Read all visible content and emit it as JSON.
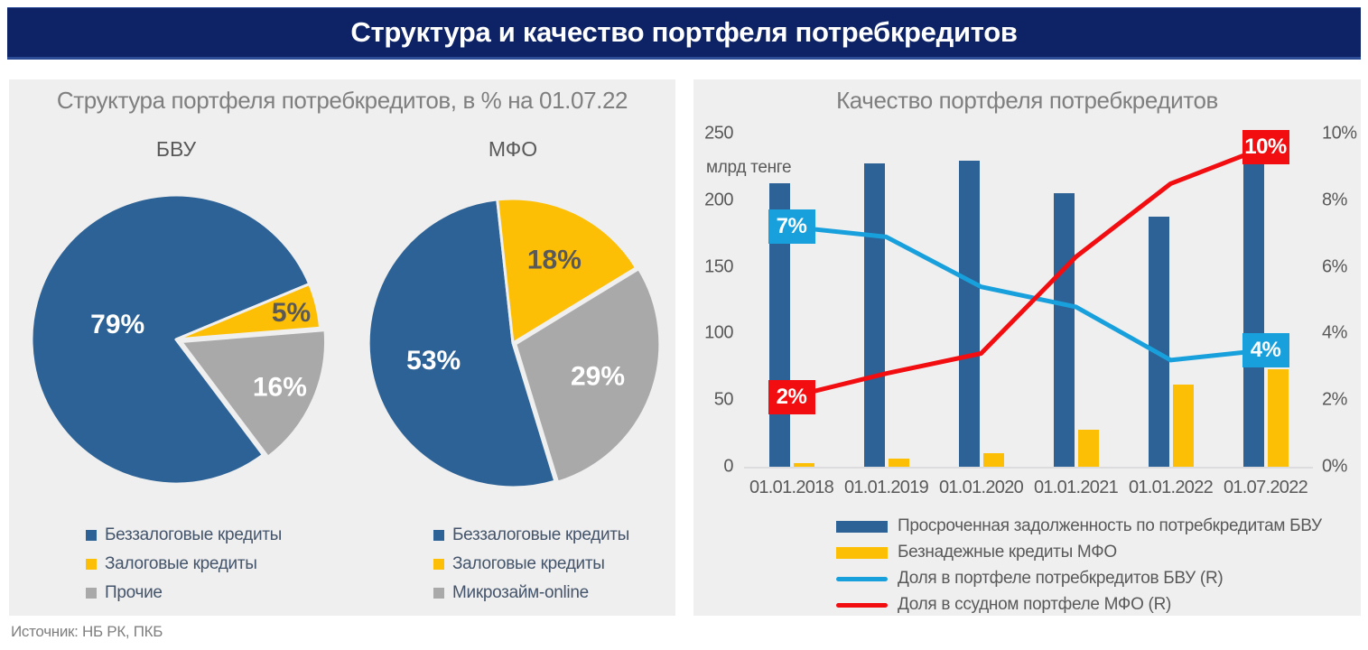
{
  "page": {
    "title": "Структура и качество портфеля потребкредитов",
    "source": "Источник: НБ РК, ПКБ"
  },
  "colors": {
    "header_bg": "#0e2365",
    "panel_bg": "#efeff0",
    "bar_blue": "#2c6295",
    "amber": "#fdbf05",
    "gray_slice": "#a9a9aa",
    "line_cyan": "#18a0dc",
    "line_red": "#f20d11",
    "title_gray": "#7f7f7f",
    "axis_text": "#595959",
    "legend_text": "#44546a"
  },
  "structure_panel": {
    "title": "Структура портфеля потребкредитов, в % на 01.07.22"
  },
  "chart_data": [
    {
      "type": "pie",
      "title": "БВУ",
      "rotation_deg": 143,
      "slices": [
        {
          "label": "Беззалоговые кредиты",
          "value": 79,
          "pct_label": "79%",
          "color": "#2c6295"
        },
        {
          "label": "Залоговые кредиты",
          "value": 5,
          "pct_label": "5%",
          "color": "#fdbf05"
        },
        {
          "label": "Прочие",
          "value": 16,
          "pct_label": "16%",
          "color": "#a9a9aa"
        }
      ]
    },
    {
      "type": "pie",
      "title": "МФО",
      "rotation_deg": 163,
      "slices": [
        {
          "label": "Беззалоговые кредиты",
          "value": 53,
          "pct_label": "53%",
          "color": "#2c6295"
        },
        {
          "label": "Залоговые кредиты",
          "value": 18,
          "pct_label": "18%",
          "color": "#fdbf05"
        },
        {
          "label": "Микрозайм-online",
          "value": 29,
          "pct_label": "29%",
          "color": "#a9a9aa"
        }
      ]
    },
    {
      "type": "bar+line",
      "title": "Качество портфеля потребкредитов",
      "categories": [
        "01.01.2018",
        "01.01.2019",
        "01.01.2020",
        "01.01.2021",
        "01.01.2022",
        "01.07.2022"
      ],
      "y_left": {
        "label": "млрд тенге",
        "ticks": [
          "250",
          "200",
          "150",
          "100",
          "50",
          "0"
        ],
        "max": 250,
        "min": 0
      },
      "y_right": {
        "ticks": [
          "10%",
          "8%",
          "6%",
          "4%",
          "2%",
          "0%"
        ],
        "max": 10,
        "min": 0
      },
      "grid": false,
      "legend_position": "bottom",
      "series": [
        {
          "name": "Просроченная задолженность по потребкредитам БВУ",
          "type": "bar",
          "axis": "left",
          "color": "#2c6295",
          "values": [
            213,
            228,
            230,
            205,
            188,
            240
          ]
        },
        {
          "name": "Безнадежные кредиты МФО",
          "type": "bar",
          "axis": "left",
          "color": "#fdbf05",
          "values": [
            3,
            6,
            10,
            28,
            62,
            73
          ]
        },
        {
          "name": "Доля в портфеле потребкредитов БВУ (R)",
          "type": "line",
          "axis": "right",
          "color": "#18a0dc",
          "values": [
            7.2,
            6.9,
            5.4,
            4.8,
            3.2,
            3.5
          ]
        },
        {
          "name": "Доля в ссудном портфеле МФО (R)",
          "type": "line",
          "axis": "right",
          "color": "#f20d11",
          "values": [
            2.1,
            2.8,
            3.4,
            6.3,
            8.5,
            9.6
          ]
        }
      ],
      "point_labels": [
        {
          "series": 2,
          "index": 0,
          "text": "7%"
        },
        {
          "series": 2,
          "index": 5,
          "text": "4%"
        },
        {
          "series": 3,
          "index": 0,
          "text": "2%"
        },
        {
          "series": 3,
          "index": 5,
          "text": "10%"
        }
      ]
    }
  ]
}
